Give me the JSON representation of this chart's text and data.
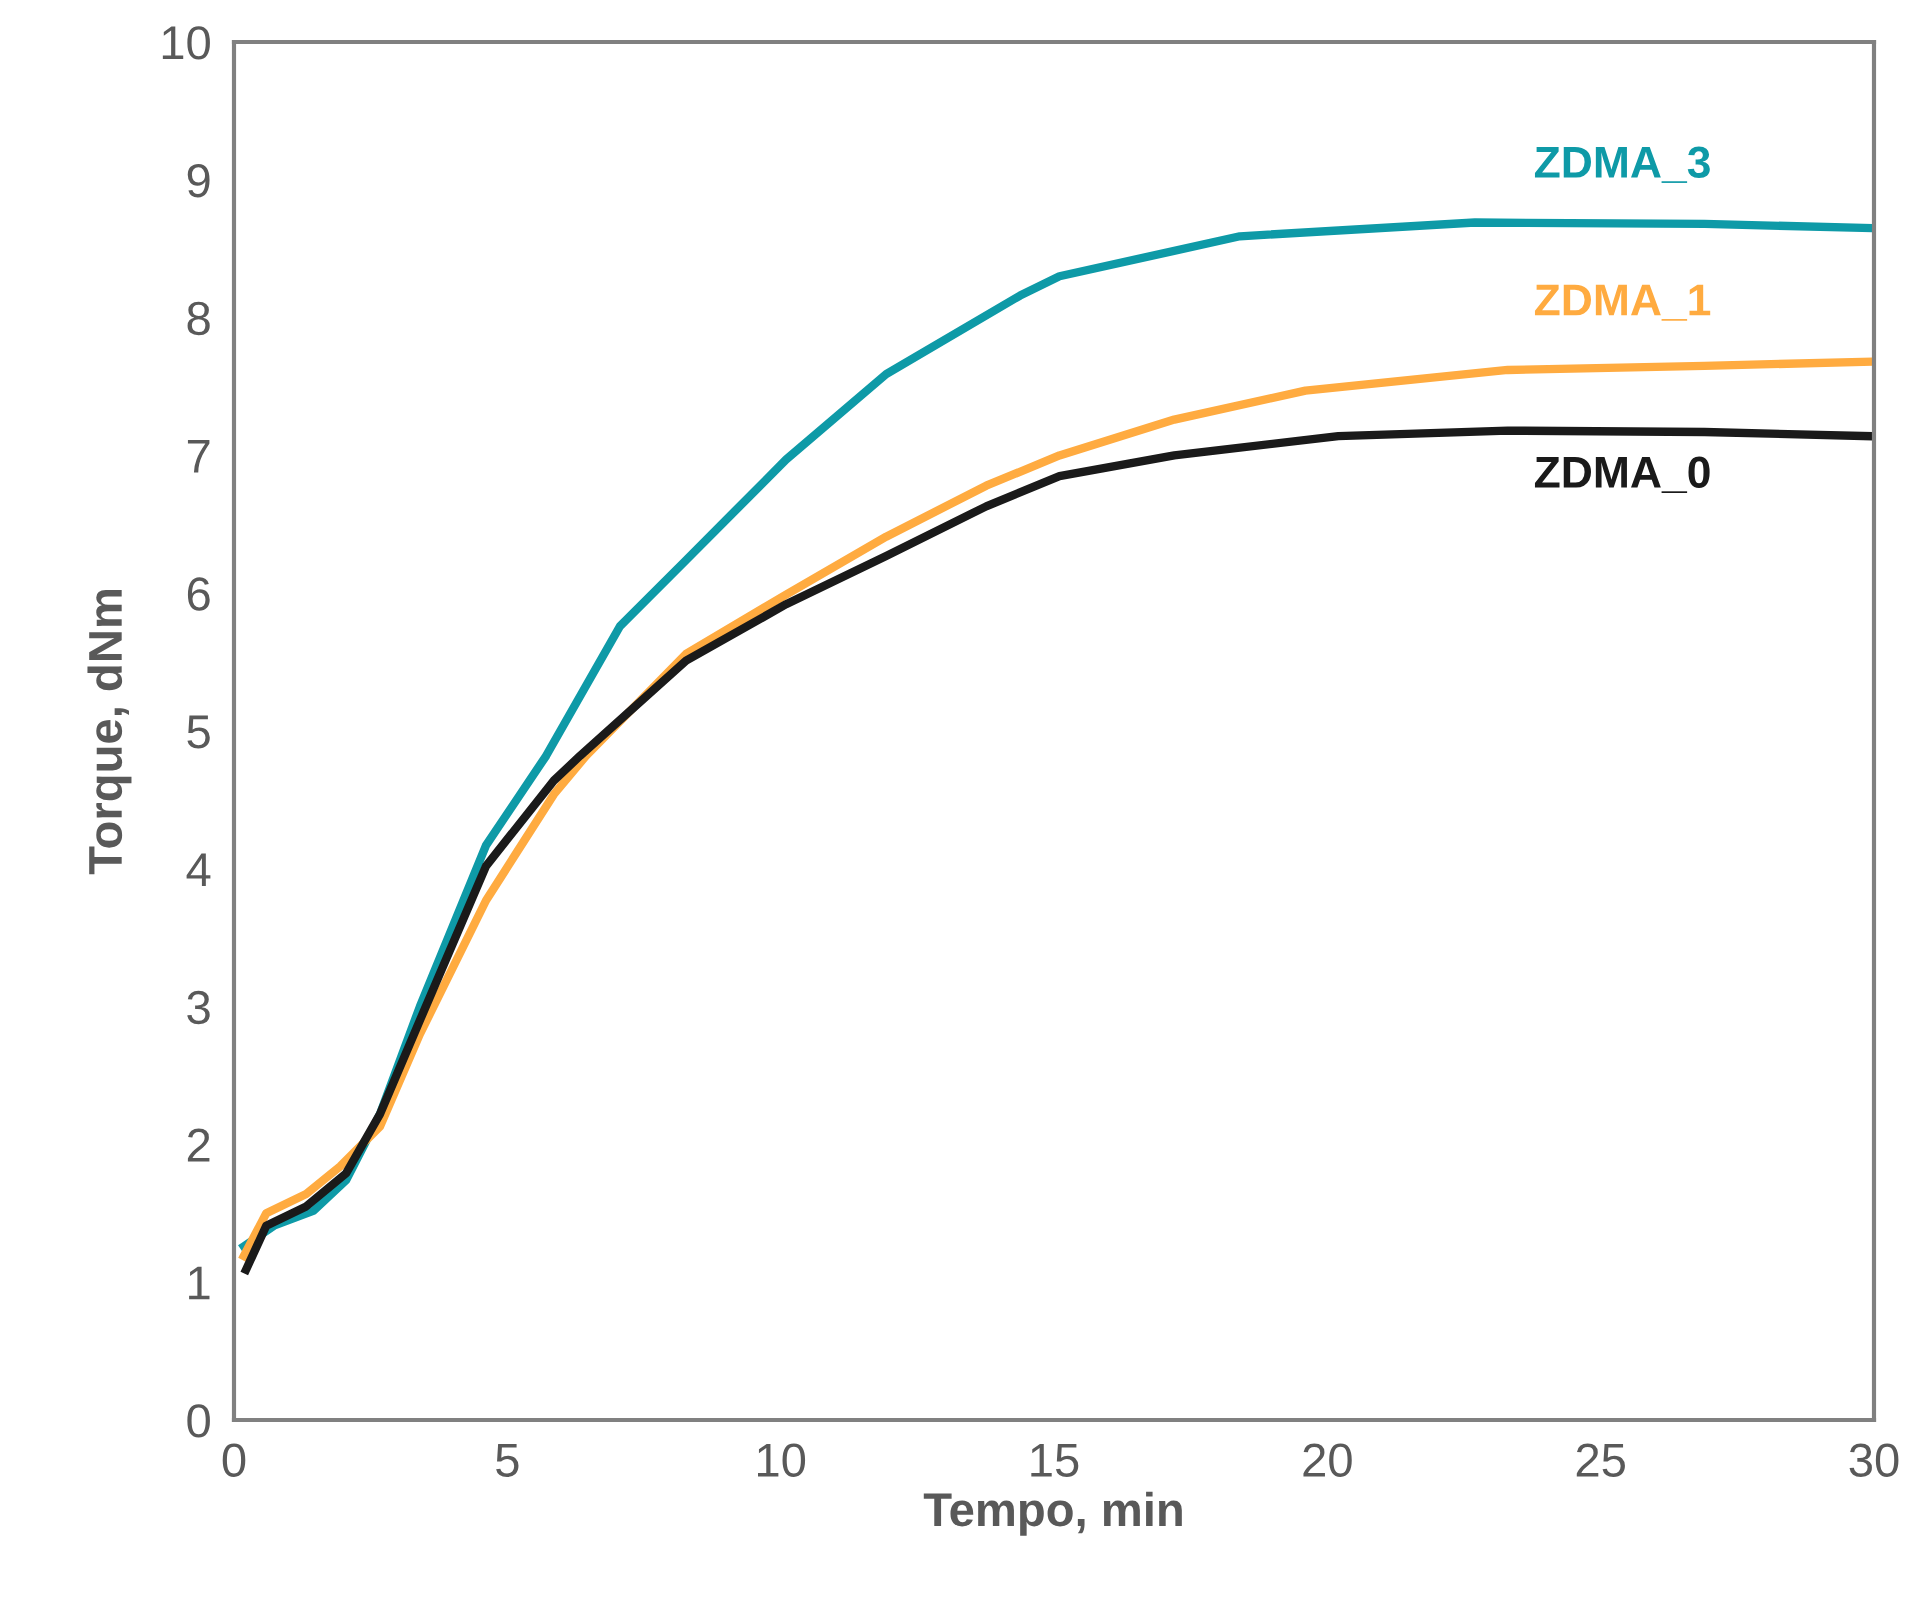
{
  "chart_data": {
    "type": "line",
    "xlabel": "Tempo, min",
    "ylabel": "Torque, dNm",
    "xlim": [
      0,
      30
    ],
    "xticks": [
      0,
      5,
      10,
      15,
      20,
      25,
      30
    ],
    "ylim": [
      0,
      10
    ],
    "yticks": [
      0,
      1,
      2,
      3,
      4,
      5,
      6,
      7,
      8,
      9,
      10
    ],
    "grid": false,
    "legend": false,
    "marker": "none",
    "line_style": "solid",
    "series": [
      {
        "name": "ZDMA_3",
        "color": "#0e9aa7",
        "x": [
          0.18,
          0.73,
          1.46,
          2.05,
          2.67,
          3.4,
          4.61,
          5.71,
          7.06,
          8.27,
          10.1,
          11.93,
          14.38,
          15.1,
          18.4,
          22.7,
          26.9,
          29.9
        ],
        "values": [
          1.26,
          1.41,
          1.52,
          1.74,
          2.22,
          3.0,
          4.17,
          4.82,
          5.76,
          6.24,
          6.97,
          7.59,
          8.16,
          8.3,
          8.59,
          8.69,
          8.68,
          8.65
        ]
      },
      {
        "name": "ZDMA_1",
        "color": "#ffab40",
        "x": [
          0.18,
          0.59,
          1.32,
          1.94,
          2.67,
          3.4,
          4.61,
          5.85,
          6.44,
          8.27,
          10.1,
          11.93,
          13.76,
          15.1,
          17.2,
          19.6,
          23.3,
          26.9,
          29.9
        ],
        "values": [
          1.19,
          1.5,
          1.64,
          1.84,
          2.13,
          2.8,
          3.77,
          4.54,
          4.82,
          5.56,
          5.99,
          6.41,
          6.78,
          7.0,
          7.26,
          7.47,
          7.62,
          7.65,
          7.68
        ]
      },
      {
        "name": "ZDMA_0",
        "color": "#1a1a1a",
        "x": [
          0.22,
          0.59,
          1.32,
          2.05,
          2.67,
          3.4,
          4.61,
          5.85,
          6.33,
          8.27,
          10.1,
          11.93,
          13.76,
          15.1,
          17.2,
          20.2,
          23.3,
          26.9,
          29.9
        ],
        "values": [
          1.09,
          1.41,
          1.55,
          1.79,
          2.22,
          2.9,
          4.02,
          4.64,
          4.82,
          5.51,
          5.92,
          6.27,
          6.63,
          6.85,
          7.0,
          7.14,
          7.18,
          7.17,
          7.14
        ]
      }
    ]
  }
}
